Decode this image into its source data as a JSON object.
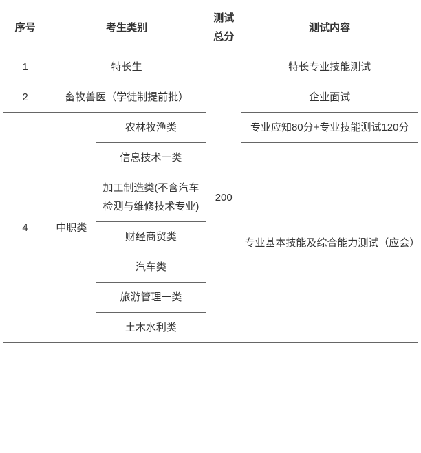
{
  "table": {
    "headers": {
      "seq": "序号",
      "category": "考生类别",
      "totalScore": "测试总分",
      "content": "测试内容"
    },
    "totalScoreValue": "200",
    "rows": {
      "r1": {
        "seq": "1",
        "category": "特长生",
        "content": "特长专业技能测试"
      },
      "r2": {
        "seq": "2",
        "category": "畜牧兽医（学徒制提前批）",
        "content": "企业面试"
      },
      "r3": {
        "seq": "4",
        "categoryMain": "中职类",
        "sub1": "农林牧渔类",
        "content1": "专业应知80分+专业技能测试120分",
        "sub2": "信息技术一类",
        "sub3": "加工制造类(不含汽车检测与维修技术专业)",
        "sub4": "财经商贸类",
        "sub5": "汽车类",
        "sub6": "旅游管理一类",
        "sub7": "土木水利类",
        "content2": "专业基本技能及综合能力测试（应会）"
      }
    },
    "style": {
      "borderColor": "#666666",
      "textColor": "#333333",
      "background": "#ffffff",
      "fontSize": 15,
      "headerFontWeight": "bold"
    }
  }
}
